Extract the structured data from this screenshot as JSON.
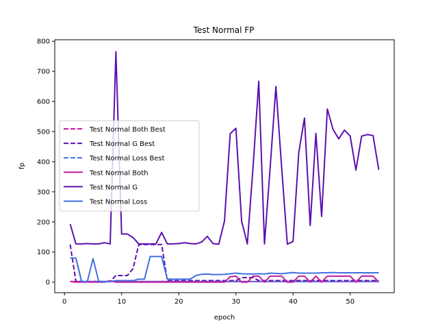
{
  "chart_data": {
    "type": "line",
    "title": "Test Normal FP",
    "xlabel": "epoch",
    "ylabel": "fp",
    "xlim": [
      -1.7,
      57.7
    ],
    "ylim": [
      -35,
      805
    ],
    "xticks": [
      0,
      10,
      20,
      30,
      40,
      50
    ],
    "yticks": [
      0,
      100,
      200,
      300,
      400,
      500,
      600,
      700,
      800
    ],
    "grid": false,
    "legend_position": "center-left",
    "x": [
      1,
      2,
      3,
      4,
      5,
      6,
      7,
      8,
      9,
      10,
      11,
      12,
      13,
      14,
      15,
      16,
      17,
      18,
      19,
      20,
      21,
      22,
      23,
      24,
      25,
      26,
      27,
      28,
      29,
      30,
      31,
      32,
      33,
      34,
      35,
      36,
      37,
      38,
      39,
      40,
      41,
      42,
      43,
      44,
      45,
      46,
      47,
      48,
      49,
      50,
      51,
      52,
      53,
      54,
      55
    ],
    "series": [
      {
        "name": "Test Normal Both Best",
        "color": "#c41aa0",
        "style": "dashed",
        "values": [
          2,
          2,
          2,
          2,
          2,
          2,
          2,
          2,
          2,
          2,
          2,
          2,
          2,
          2,
          2,
          2,
          2,
          2,
          2,
          2,
          2,
          2,
          2,
          2,
          2,
          2,
          2,
          2,
          2,
          2,
          2,
          2,
          2,
          2,
          2,
          2,
          2,
          2,
          2,
          2,
          2,
          2,
          2,
          2,
          2,
          2,
          2,
          2,
          2,
          2,
          2,
          2,
          2,
          2,
          2
        ]
      },
      {
        "name": "Test Normal G Best",
        "color": "#5a0fb0",
        "style": "dashed",
        "values": [
          125,
          2,
          2,
          2,
          2,
          2,
          2,
          2,
          22,
          22,
          22,
          45,
          125,
          125,
          125,
          125,
          125,
          5,
          5,
          5,
          5,
          5,
          5,
          5,
          5,
          5,
          5,
          5,
          5,
          5,
          15,
          15,
          15,
          5,
          5,
          5,
          5,
          5,
          5,
          5,
          5,
          5,
          5,
          5,
          5,
          5,
          5,
          5,
          5,
          5,
          5,
          5,
          5,
          5,
          5
        ]
      },
      {
        "name": "Test Normal Loss Best",
        "color": "#3f6fe0",
        "style": "dashed",
        "values": [
          80,
          80,
          2,
          2,
          2,
          2,
          2,
          2,
          2,
          2,
          2,
          2,
          2,
          2,
          2,
          2,
          2,
          2,
          2,
          2,
          2,
          2,
          2,
          2,
          2,
          2,
          2,
          2,
          2,
          2,
          2,
          2,
          2,
          2,
          2,
          2,
          2,
          2,
          2,
          2,
          2,
          2,
          2,
          2,
          2,
          2,
          2,
          2,
          2,
          2,
          2,
          2,
          2,
          2,
          2
        ]
      },
      {
        "name": "Test Normal Both",
        "color": "#c41aa0",
        "style": "solid",
        "values": [
          2,
          0,
          0,
          0,
          0,
          0,
          0,
          5,
          0,
          0,
          0,
          0,
          0,
          0,
          0,
          0,
          0,
          0,
          0,
          0,
          0,
          0,
          0,
          0,
          0,
          0,
          0,
          0,
          18,
          20,
          0,
          0,
          20,
          20,
          0,
          20,
          20,
          20,
          0,
          0,
          20,
          20,
          0,
          20,
          0,
          20,
          20,
          20,
          20,
          20,
          0,
          20,
          20,
          20,
          0
        ]
      },
      {
        "name": "Test Normal G",
        "color": "#5a0fb0",
        "style": "solid",
        "values": [
          193,
          127,
          127,
          128,
          127,
          127,
          131,
          127,
          765,
          160,
          160,
          148,
          127,
          127,
          127,
          127,
          165,
          127,
          127,
          128,
          131,
          128,
          127,
          133,
          152,
          128,
          126,
          203,
          493,
          511,
          203,
          127,
          382,
          667,
          127,
          382,
          650,
          382,
          126,
          135,
          430,
          545,
          188,
          494,
          218,
          575,
          507,
          476,
          505,
          485,
          372,
          485,
          490,
          487,
          373
        ]
      },
      {
        "name": "Test Normal Loss",
        "color": "#3f6fe0",
        "style": "solid",
        "values": [
          80,
          80,
          2,
          2,
          78,
          2,
          2,
          2,
          5,
          5,
          5,
          5,
          10,
          10,
          85,
          85,
          85,
          10,
          10,
          10,
          10,
          10,
          22,
          26,
          27,
          25,
          25,
          26,
          28,
          30,
          28,
          27,
          27,
          28,
          27,
          30,
          29,
          28,
          30,
          32,
          30,
          30,
          30,
          30,
          31,
          31,
          32,
          31,
          31,
          31,
          31,
          31,
          31,
          31,
          31
        ]
      }
    ]
  }
}
